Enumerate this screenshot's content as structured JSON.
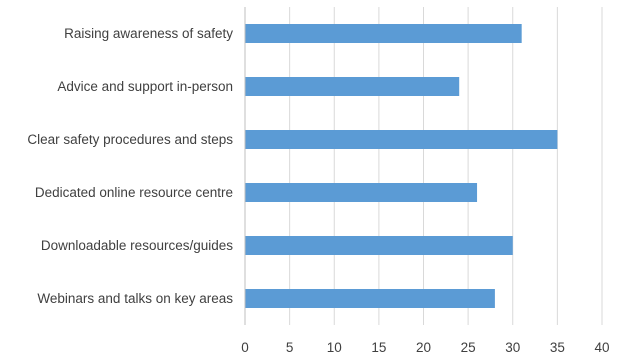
{
  "chart_data": {
    "type": "bar",
    "orientation": "horizontal",
    "title": "",
    "xlabel": "",
    "ylabel": "",
    "categories": [
      "Raising awareness of safety",
      "Advice and support in-person",
      "Clear safety procedures and steps",
      "Dedicated online resource centre",
      "Downloadable resources/guides",
      "Webinars and talks on key areas"
    ],
    "values": [
      31,
      24,
      35,
      26,
      30,
      28
    ],
    "xlim": [
      0,
      40
    ],
    "xticks": [
      0,
      5,
      10,
      15,
      20,
      25,
      30,
      35,
      40
    ],
    "grid": true,
    "legend": "none",
    "bar_color": "#5b9bd5"
  }
}
